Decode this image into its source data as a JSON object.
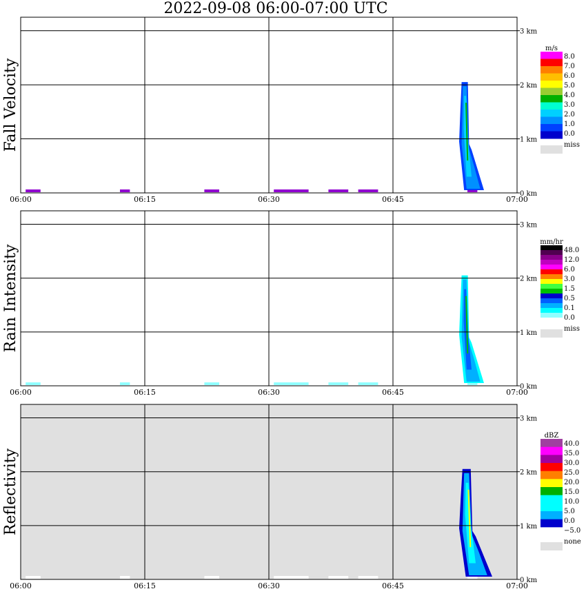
{
  "title": "2022-09-08   06:00-07:00 UTC",
  "time_ticks": [
    "06:00",
    "06:15",
    "06:30",
    "06:45",
    "07:00"
  ],
  "height_ticks": [
    "0 km",
    "1 km",
    "2 km",
    "3 km"
  ],
  "colors": {
    "miss": "#e0e0e0",
    "grid": "#000000"
  },
  "chart_data": [
    {
      "type": "heatmap",
      "title": "Fall Velocity",
      "unit": "m/s",
      "background": "#ffffff",
      "x_range": [
        "06:00",
        "07:00"
      ],
      "y_range_km": [
        0,
        3.25
      ],
      "grid": true,
      "legend": {
        "placement": "right",
        "labels": [
          "8.0",
          "7.0",
          "6.0",
          "5.0",
          "4.0",
          "3.0",
          "2.0",
          "1.0",
          "0.0"
        ],
        "colors": [
          "#ff00ff",
          "#ff0000",
          "#ff7f00",
          "#ffbf00",
          "#ffff00",
          "#9acd32",
          "#00b000",
          "#00ffd0",
          "#00d0ff",
          "#0090ff",
          "#0040ff",
          "#0000cc"
        ],
        "miss_label": "miss"
      },
      "echoes": [
        {
          "start": "06:53",
          "end": "06:56",
          "top_km": 2.05,
          "colors": [
            "#0040ff",
            "#0090ff",
            "#00d0ff",
            "#00ffd0",
            "#00b000"
          ]
        }
      ],
      "surface_clutter_color": "#9000d0"
    },
    {
      "type": "heatmap",
      "title": "Rain Intensity",
      "unit": "mm/hr",
      "background": "#ffffff",
      "x_range": [
        "06:00",
        "07:00"
      ],
      "y_range_km": [
        0,
        3.25
      ],
      "grid": true,
      "legend": {
        "placement": "right",
        "labels": [
          "48.0",
          "12.0",
          "6.0",
          "3.0",
          "1.5",
          "0.5",
          "0.1",
          "0.0"
        ],
        "colors": [
          "#000000",
          "#500050",
          "#8b008b",
          "#c000c0",
          "#ff00ff",
          "#ff0000",
          "#ff8000",
          "#ffff00",
          "#40ff40",
          "#00c000",
          "#0000cc",
          "#0060ff",
          "#00b0ff",
          "#00ffff",
          "#90ffff",
          "#ffffff"
        ],
        "miss_label": "miss"
      },
      "echoes": [
        {
          "start": "06:53",
          "end": "06:56",
          "top_km": 2.05,
          "colors": [
            "#00ffff",
            "#00b0ff",
            "#0060ff",
            "#90ffff",
            "#00c000"
          ]
        }
      ],
      "surface_clutter_color": "#90ffff"
    },
    {
      "type": "heatmap",
      "title": "Reflectivity",
      "unit": "dBZ",
      "background": "#e0e0e0",
      "x_range": [
        "06:00",
        "07:00"
      ],
      "y_range_km": [
        0,
        3.25
      ],
      "grid": true,
      "legend": {
        "placement": "right",
        "labels": [
          "40.0",
          "35.0",
          "30.0",
          "25.0",
          "20.0",
          "15.0",
          "10.0",
          "5.0",
          "0.0",
          "−5.0"
        ],
        "colors": [
          "#a040a0",
          "#ff00ff",
          "#a000a0",
          "#ff0000",
          "#ff7f00",
          "#ffff00",
          "#00b000",
          "#00ffff",
          "#00ffff",
          "#00b0ff",
          "#0000cc",
          "#ffffff"
        ],
        "miss_label": "none"
      },
      "echoes": [
        {
          "start": "06:53",
          "end": "06:57",
          "top_km": 2.05,
          "colors": [
            "#0000cc",
            "#00b0ff",
            "#00ffff",
            "#00b000",
            "#ffff00"
          ]
        }
      ],
      "surface_clutter_color": "#ffffff"
    }
  ]
}
